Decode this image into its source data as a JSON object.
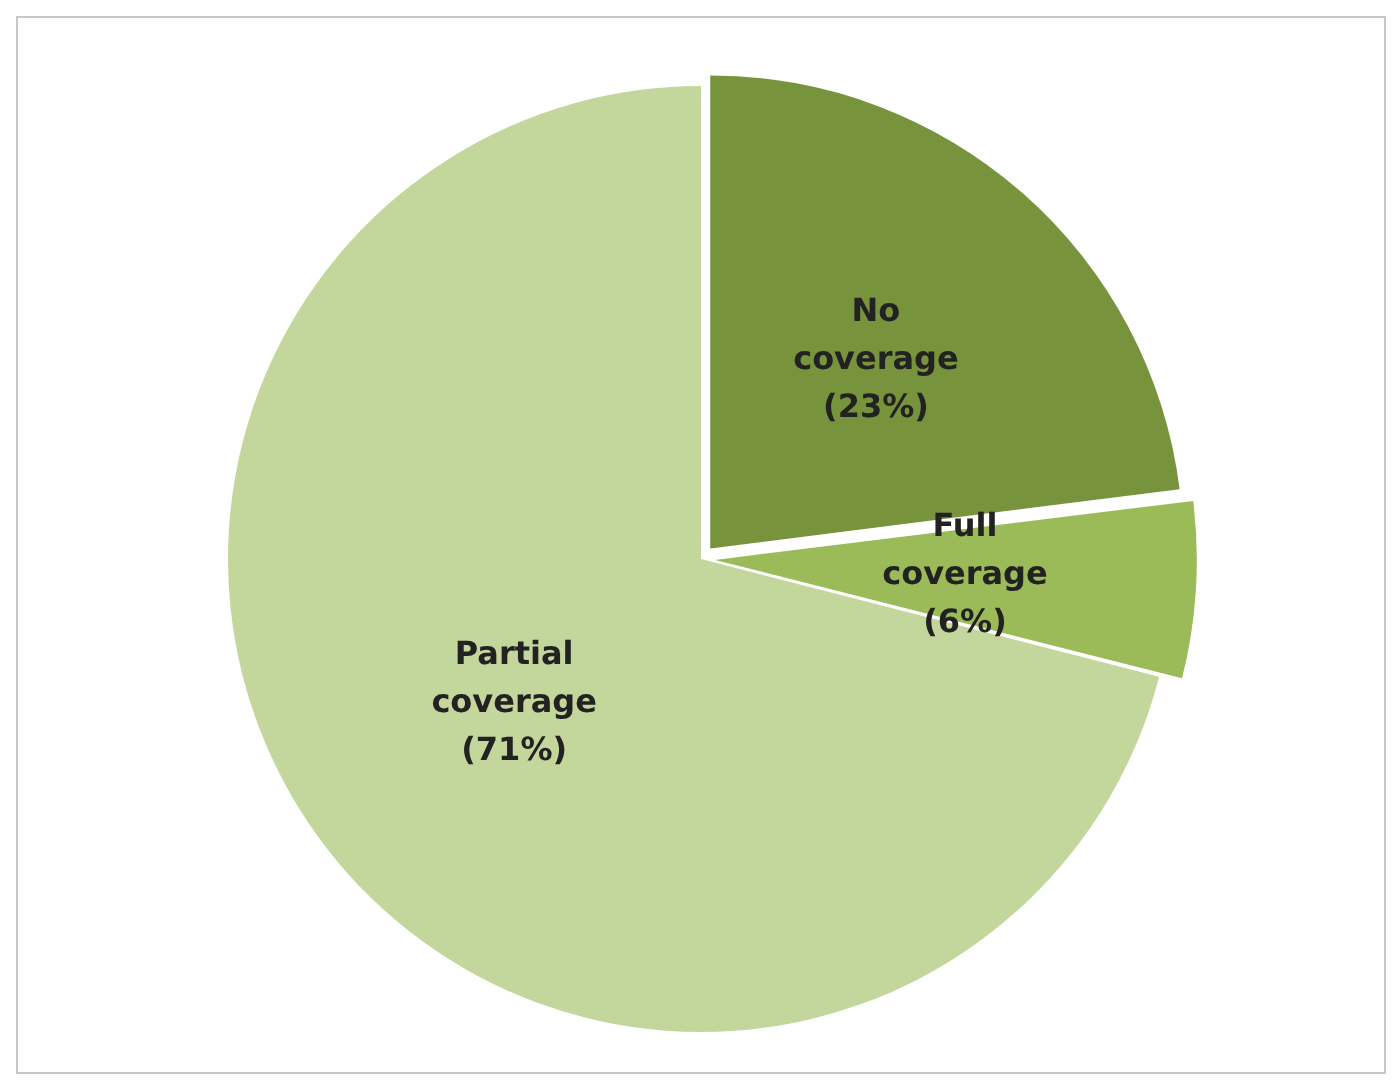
{
  "chart_data": {
    "type": "pie",
    "categories": [
      "No coverage",
      "Full coverage",
      "Partial coverage"
    ],
    "values": [
      23,
      6,
      71
    ],
    "colors": [
      "#77933c",
      "#9bbb59",
      "#c3d69b"
    ],
    "value_labels": [
      "(23%)",
      "(6%)",
      "(71%)"
    ],
    "legend": false
  }
}
